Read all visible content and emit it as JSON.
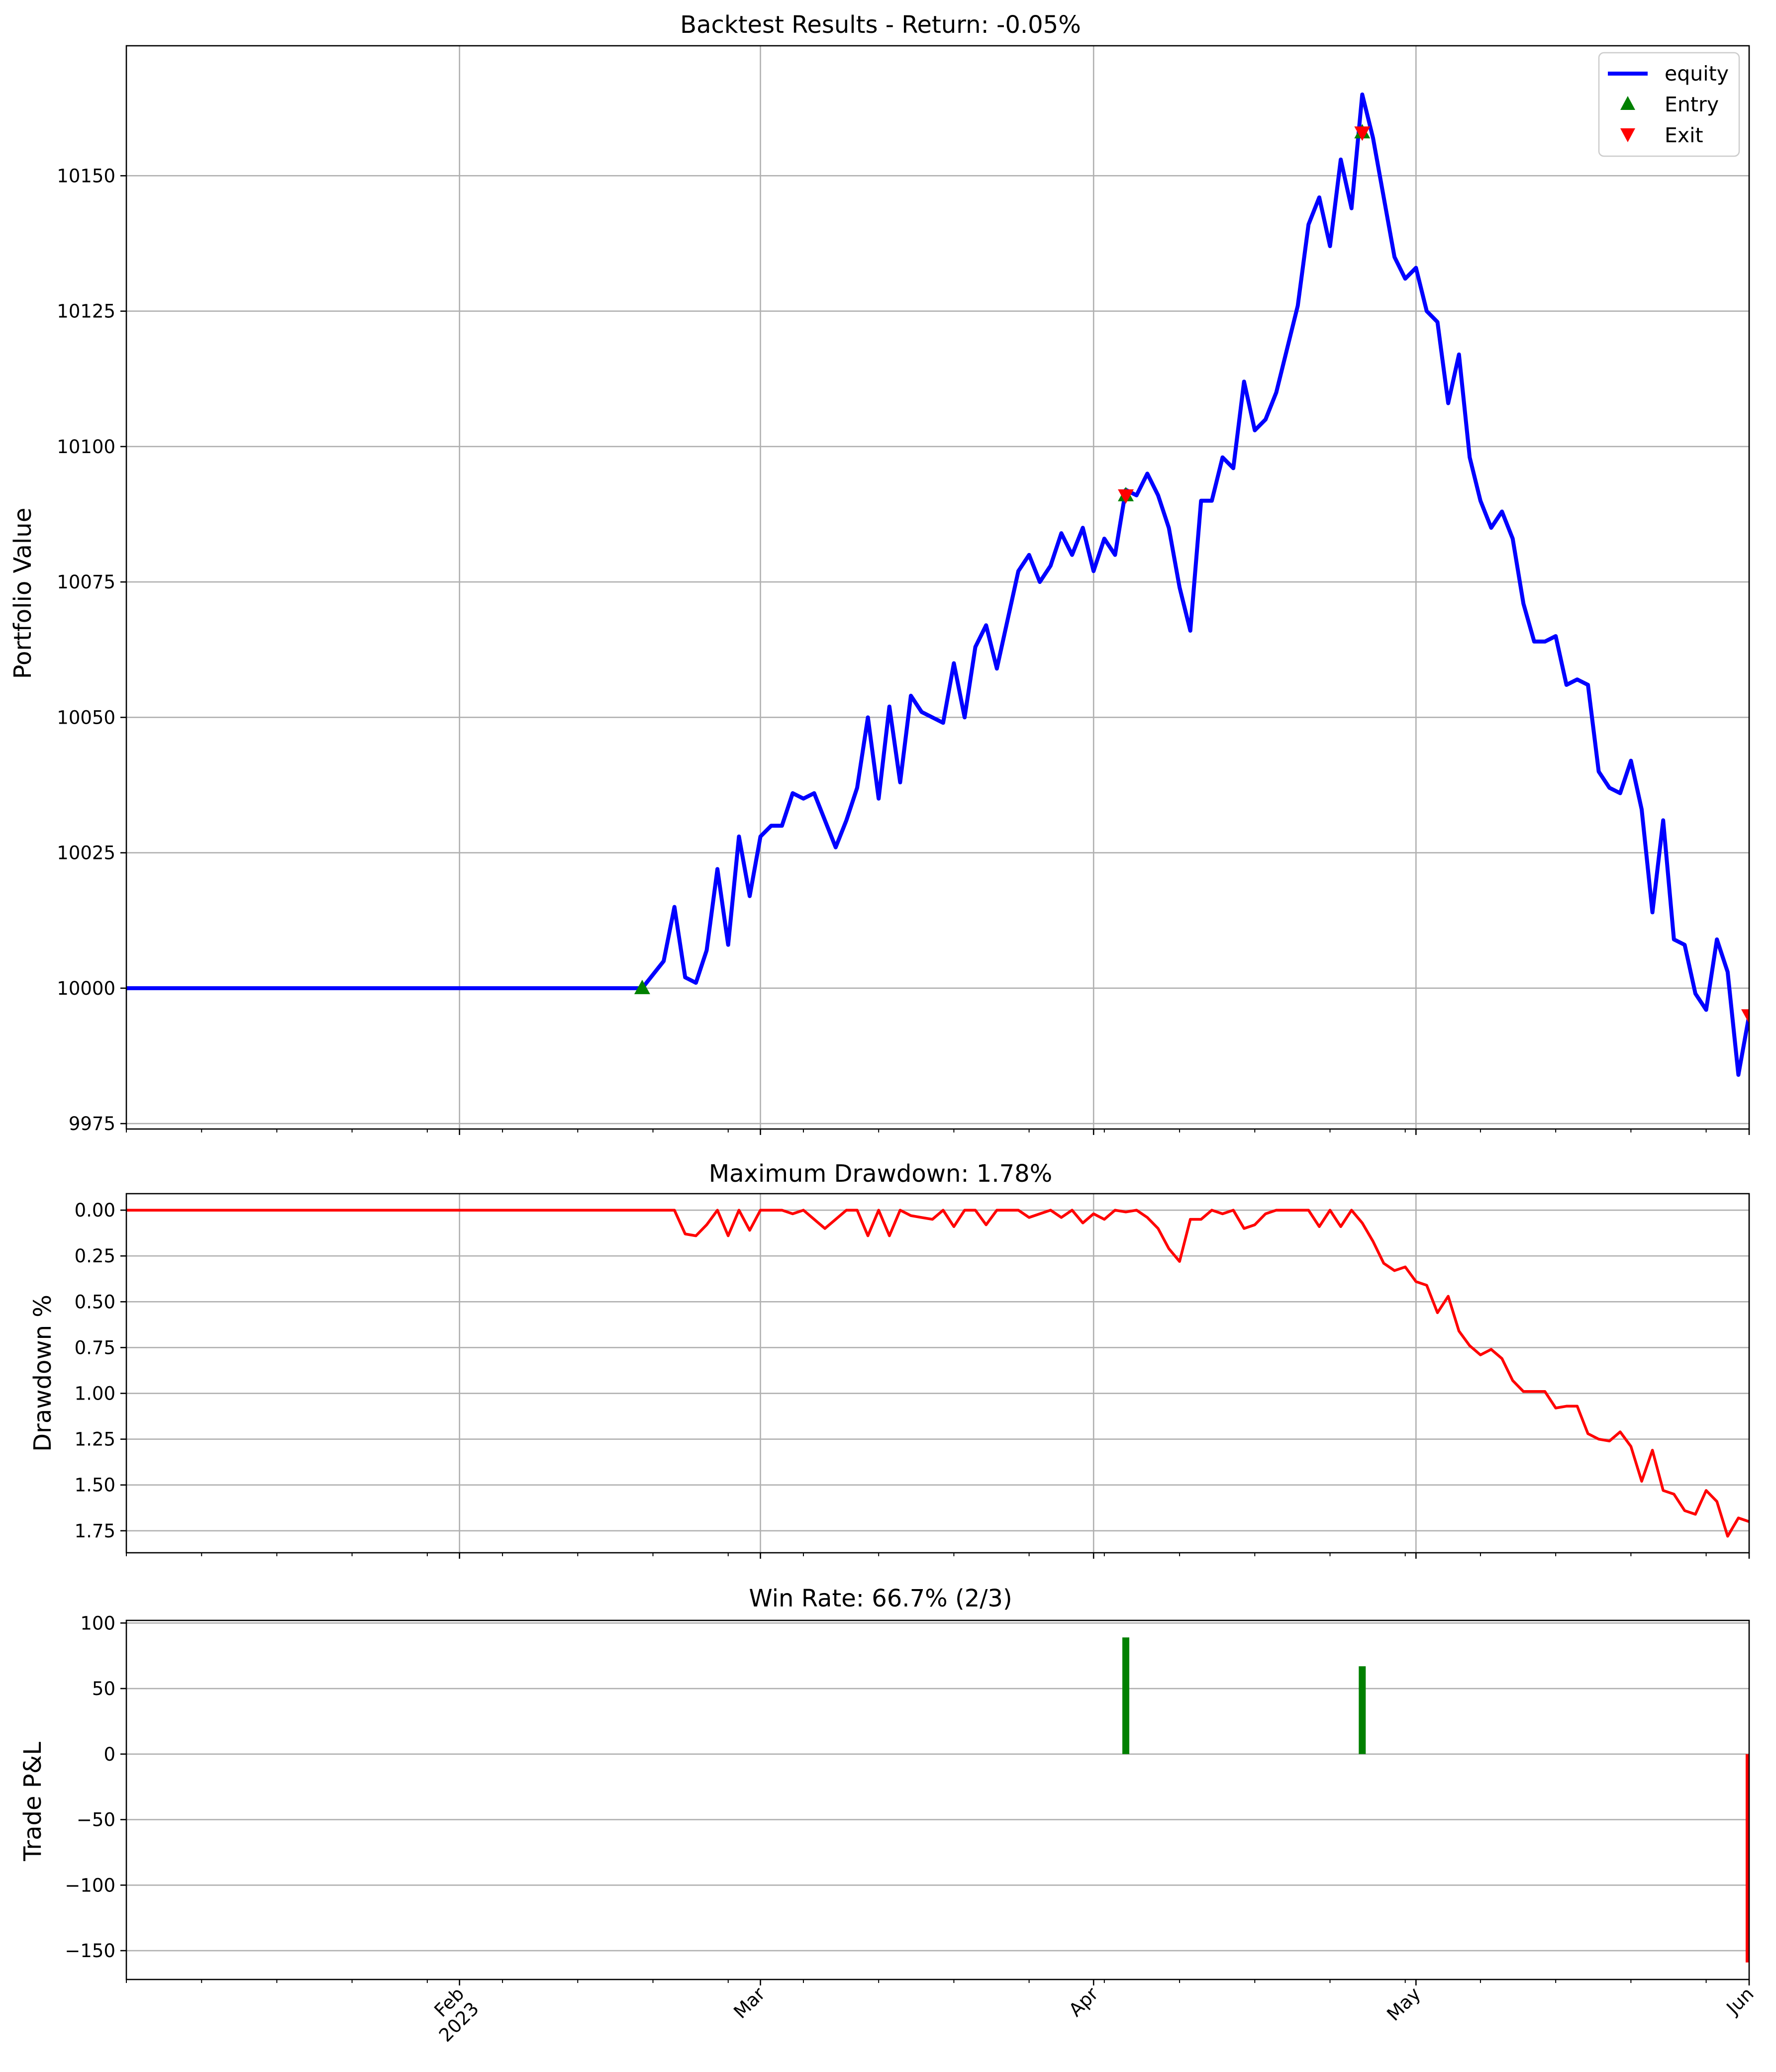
{
  "chart_data": [
    {
      "type": "line",
      "title": "Backtest Results - Return: -0.05%",
      "ylabel": "Portfolio Value",
      "xlabel": "",
      "xlim": [
        "2023-01-01",
        "2023-06-01"
      ],
      "ylim": [
        9974,
        10174
      ],
      "yticks": [
        9975,
        10000,
        10025,
        10050,
        10075,
        10100,
        10125,
        10150
      ],
      "grid": true,
      "legend": {
        "placement": "top-right",
        "entries": [
          "equity",
          "Entry",
          "Exit"
        ]
      },
      "series": [
        {
          "name": "equity",
          "color": "#0000ff",
          "x": [
            "2023-01-01",
            "2023-02-18",
            "2023-02-20",
            "2023-02-21",
            "2023-02-22",
            "2023-02-23",
            "2023-02-24",
            "2023-02-25",
            "2023-02-26",
            "2023-02-27",
            "2023-02-28",
            "2023-03-01",
            "2023-03-02",
            "2023-03-03",
            "2023-03-04",
            "2023-03-05",
            "2023-03-06",
            "2023-03-07",
            "2023-03-08",
            "2023-03-09",
            "2023-03-10",
            "2023-03-11",
            "2023-03-12",
            "2023-03-13",
            "2023-03-14",
            "2023-03-15",
            "2023-03-16",
            "2023-03-17",
            "2023-03-18",
            "2023-03-19",
            "2023-03-20",
            "2023-03-21",
            "2023-03-22",
            "2023-03-23",
            "2023-03-24",
            "2023-03-25",
            "2023-03-26",
            "2023-03-27",
            "2023-03-28",
            "2023-03-29",
            "2023-03-30",
            "2023-03-31",
            "2023-04-01",
            "2023-04-02",
            "2023-04-03",
            "2023-04-04",
            "2023-04-05",
            "2023-04-06",
            "2023-04-07",
            "2023-04-08",
            "2023-04-09",
            "2023-04-10",
            "2023-04-11",
            "2023-04-12",
            "2023-04-13",
            "2023-04-14",
            "2023-04-15",
            "2023-04-16",
            "2023-04-17",
            "2023-04-18",
            "2023-04-19",
            "2023-04-20",
            "2023-04-21",
            "2023-04-22",
            "2023-04-23",
            "2023-04-24",
            "2023-04-25",
            "2023-04-26",
            "2023-04-27",
            "2023-04-28",
            "2023-04-29",
            "2023-04-30",
            "2023-05-01",
            "2023-05-02",
            "2023-05-03",
            "2023-05-04",
            "2023-05-05",
            "2023-05-06",
            "2023-05-07",
            "2023-05-08",
            "2023-05-09",
            "2023-05-10",
            "2023-05-11",
            "2023-05-12",
            "2023-05-13",
            "2023-05-14",
            "2023-05-15",
            "2023-05-16",
            "2023-05-17",
            "2023-05-18",
            "2023-05-19",
            "2023-05-20",
            "2023-05-21",
            "2023-05-22",
            "2023-05-23",
            "2023-05-24",
            "2023-05-25",
            "2023-05-26",
            "2023-05-27",
            "2023-05-28",
            "2023-05-29",
            "2023-05-30",
            "2023-05-31",
            "2023-06-01"
          ],
          "values": [
            10000,
            10000,
            10005,
            10015,
            10002,
            10001,
            10007,
            10022,
            10008,
            10028,
            10017,
            10028,
            10030,
            10030,
            10036,
            10035,
            10036,
            10031,
            10026,
            10031,
            10037,
            10050,
            10035,
            10052,
            10038,
            10054,
            10051,
            10050,
            10049,
            10060,
            10050,
            10063,
            10067,
            10059,
            10068,
            10077,
            10080,
            10075,
            10078,
            10084,
            10080,
            10085,
            10077,
            10083,
            10080,
            10092,
            10091,
            10095,
            10091,
            10085,
            10074,
            10066,
            10090,
            10090,
            10098,
            10096,
            10112,
            10103,
            10105,
            10110,
            10118,
            10126,
            10141,
            10146,
            10137,
            10153,
            10144,
            10165,
            10157,
            10146,
            10135,
            10131,
            10133,
            10125,
            10123,
            10108,
            10117,
            10098,
            10090,
            10085,
            10088,
            10083,
            10071,
            10064,
            10064,
            10065,
            10056,
            10057,
            10056,
            10040,
            10037,
            10036,
            10042,
            10033,
            10014,
            10031,
            10009,
            10008,
            9999,
            9996,
            10009,
            10003,
            9984,
            9995
          ]
        }
      ],
      "markers": {
        "entry": {
          "color": "#008000",
          "symbol": "triangle-up",
          "x": [
            "2023-02-18",
            "2023-04-04",
            "2023-04-26"
          ],
          "y": [
            10000,
            10091,
            10158
          ]
        },
        "exit": {
          "color": "#ff0000",
          "symbol": "triangle-down",
          "x": [
            "2023-04-04",
            "2023-04-26",
            "2023-06-01"
          ],
          "y": [
            10091,
            10158,
            9995
          ]
        }
      }
    },
    {
      "type": "line",
      "title": "Maximum Drawdown: 1.78%",
      "ylabel": "Drawdown %",
      "xlabel": "",
      "xlim": [
        "2023-01-01",
        "2023-06-01"
      ],
      "ylim": [
        1.87,
        -0.09
      ],
      "inverted_y": true,
      "yticks": [
        "0.00",
        "0.25",
        "0.50",
        "0.75",
        "1.00",
        "1.25",
        "1.50",
        "1.75"
      ],
      "grid": true,
      "series": [
        {
          "name": "",
          "color": "#ff0000",
          "x": [
            "2023-01-01",
            "2023-02-21",
            "2023-02-22",
            "2023-02-23",
            "2023-02-24",
            "2023-02-25",
            "2023-02-26",
            "2023-02-27",
            "2023-02-28",
            "2023-03-01",
            "2023-03-02",
            "2023-03-03",
            "2023-03-04",
            "2023-03-05",
            "2023-03-06",
            "2023-03-07",
            "2023-03-08",
            "2023-03-09",
            "2023-03-10",
            "2023-03-11",
            "2023-03-12",
            "2023-03-13",
            "2023-03-14",
            "2023-03-15",
            "2023-03-16",
            "2023-03-17",
            "2023-03-18",
            "2023-03-19",
            "2023-03-20",
            "2023-03-21",
            "2023-03-22",
            "2023-03-23",
            "2023-03-24",
            "2023-03-25",
            "2023-03-26",
            "2023-03-27",
            "2023-03-28",
            "2023-03-29",
            "2023-03-30",
            "2023-03-31",
            "2023-04-01",
            "2023-04-02",
            "2023-04-03",
            "2023-04-04",
            "2023-04-05",
            "2023-04-06",
            "2023-04-07",
            "2023-04-08",
            "2023-04-09",
            "2023-04-10",
            "2023-04-11",
            "2023-04-12",
            "2023-04-13",
            "2023-04-14",
            "2023-04-15",
            "2023-04-16",
            "2023-04-17",
            "2023-04-18",
            "2023-04-19",
            "2023-04-20",
            "2023-04-21",
            "2023-04-22",
            "2023-04-23",
            "2023-04-24",
            "2023-04-25",
            "2023-04-26",
            "2023-04-27",
            "2023-04-28",
            "2023-04-29",
            "2023-04-30",
            "2023-05-01",
            "2023-05-02",
            "2023-05-03",
            "2023-05-04",
            "2023-05-05",
            "2023-05-06",
            "2023-05-07",
            "2023-05-08",
            "2023-05-09",
            "2023-05-10",
            "2023-05-11",
            "2023-05-12",
            "2023-05-13",
            "2023-05-14",
            "2023-05-15",
            "2023-05-16",
            "2023-05-17",
            "2023-05-18",
            "2023-05-19",
            "2023-05-20",
            "2023-05-21",
            "2023-05-22",
            "2023-05-23",
            "2023-05-24",
            "2023-05-25",
            "2023-05-26",
            "2023-05-27",
            "2023-05-28",
            "2023-05-29",
            "2023-05-30",
            "2023-05-31",
            "2023-06-01"
          ],
          "values": [
            0,
            0,
            0.13,
            0.14,
            0.08,
            0,
            0.14,
            0,
            0.11,
            0,
            0,
            0,
            0.02,
            0,
            0.05,
            0.1,
            0.05,
            0,
            0,
            0.14,
            0,
            0.14,
            0,
            0.03,
            0.04,
            0.05,
            0,
            0.09,
            0,
            0,
            0.08,
            0,
            0,
            0,
            0.04,
            0.02,
            0,
            0.04,
            0,
            0.07,
            0.02,
            0.05,
            0,
            0.01,
            0,
            0.04,
            0.1,
            0.21,
            0.28,
            0.05,
            0.05,
            0,
            0.02,
            0,
            0.1,
            0.08,
            0.02,
            0,
            0,
            0,
            0,
            0.09,
            0,
            0.09,
            0,
            0.07,
            0.17,
            0.29,
            0.33,
            0.31,
            0.39,
            0.41,
            0.56,
            0.47,
            0.66,
            0.74,
            0.79,
            0.76,
            0.81,
            0.93,
            0.99,
            0.99,
            0.99,
            1.08,
            1.07,
            1.07,
            1.22,
            1.25,
            1.26,
            1.21,
            1.29,
            1.48,
            1.31,
            1.53,
            1.55,
            1.64,
            1.66,
            1.53,
            1.59,
            1.78,
            1.68,
            1.7
          ]
        }
      ]
    },
    {
      "type": "bar",
      "title": "Win Rate: 66.7% (2/3)",
      "ylabel": "Trade P&L",
      "xlabel": "",
      "xlim": [
        "2023-01-01",
        "2023-06-01"
      ],
      "ylim": [
        -172,
        102
      ],
      "yticks": [
        "100",
        "50",
        "0",
        "−50",
        "−100",
        "−150"
      ],
      "ytick_values": [
        100,
        50,
        0,
        -50,
        -100,
        -150
      ],
      "grid": "y",
      "bars": [
        {
          "x": "2023-04-04",
          "value": 89,
          "color": "#008000"
        },
        {
          "x": "2023-04-26",
          "value": 67,
          "color": "#008000"
        },
        {
          "x": "2023-06-01",
          "value": -159,
          "color": "#ff0000"
        }
      ]
    }
  ],
  "xaxis": {
    "major_ticks": [
      {
        "date": "2023-02-01",
        "label": "Feb",
        "sublabel": "2023"
      },
      {
        "date": "2023-03-01",
        "label": "Mar",
        "sublabel": ""
      },
      {
        "date": "2023-04-01",
        "label": "Apr",
        "sublabel": ""
      },
      {
        "date": "2023-05-01",
        "label": "May",
        "sublabel": ""
      },
      {
        "date": "2023-06-01",
        "label": "Jun",
        "sublabel": ""
      }
    ],
    "minor_ticks": [
      "2023-01-01",
      "2023-01-08",
      "2023-01-15",
      "2023-01-22",
      "2023-01-29",
      "2023-02-05",
      "2023-02-12",
      "2023-02-19",
      "2023-02-26",
      "2023-03-05",
      "2023-03-12",
      "2023-03-19",
      "2023-03-26",
      "2023-04-02",
      "2023-04-09",
      "2023-04-16",
      "2023-04-23",
      "2023-04-30",
      "2023-05-07",
      "2023-05-14",
      "2023-05-21",
      "2023-05-28"
    ]
  }
}
